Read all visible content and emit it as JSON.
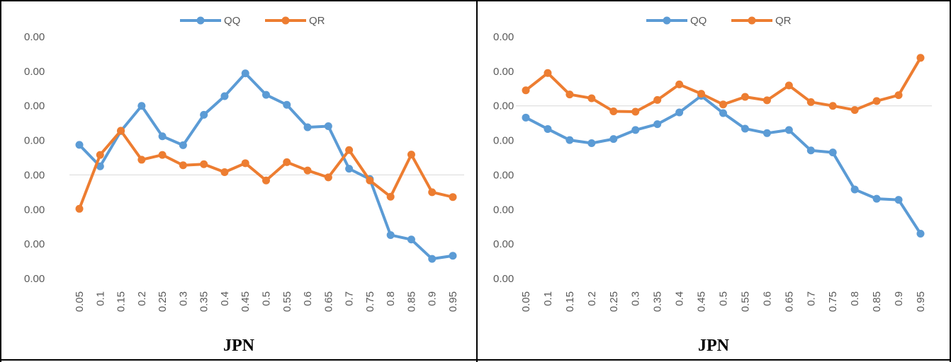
{
  "chart_data": [
    {
      "type": "line",
      "title": "",
      "xlabel": "JPN",
      "ylabel": "",
      "x": [
        "0.05",
        "0.1",
        "0.15",
        "0.2",
        "0.25",
        "0.3",
        "0.35",
        "0.4",
        "0.45",
        "0.5",
        "0.55",
        "0.6",
        "0.65",
        "0.7",
        "0.75",
        "0.8",
        "0.85",
        "0.9",
        "0.95"
      ],
      "y_tick_labels": [
        "0.00",
        "0.00",
        "0.00",
        "0.00",
        "0.00",
        "0.00",
        "0.00",
        "0.00"
      ],
      "ylim": [
        -3,
        4
      ],
      "zero_line": 0,
      "legend_position": "top",
      "series": [
        {
          "name": "QQ",
          "color": "#5B9BD5",
          "values": [
            0.87,
            0.25,
            1.27,
            2.0,
            1.12,
            0.86,
            1.74,
            2.28,
            2.94,
            2.32,
            2.03,
            1.38,
            1.41,
            0.18,
            -0.12,
            -1.74,
            -1.87,
            -2.43,
            -2.34
          ]
        },
        {
          "name": "QR",
          "color": "#ED7D31",
          "values": [
            -0.98,
            0.58,
            1.28,
            0.44,
            0.58,
            0.28,
            0.31,
            0.08,
            0.34,
            -0.16,
            0.37,
            0.13,
            -0.07,
            0.72,
            -0.16,
            -0.63,
            0.59,
            -0.5,
            -0.64
          ]
        }
      ]
    },
    {
      "type": "line",
      "title": "",
      "xlabel": "JPN",
      "ylabel": "",
      "x": [
        "0.05",
        "0.1",
        "0.15",
        "0.2",
        "0.25",
        "0.3",
        "0.35",
        "0.4",
        "0.45",
        "0.5",
        "0.55",
        "0.6",
        "0.65",
        "0.7",
        "0.75",
        "0.8",
        "0.85",
        "0.9",
        "0.95"
      ],
      "y_tick_labels": [
        "0.00",
        "0.00",
        "0.00",
        "0.00",
        "0.00",
        "0.00",
        "0.00",
        "0.00"
      ],
      "ylim": [
        -5,
        2
      ],
      "zero_line": 0,
      "legend_position": "top",
      "series": [
        {
          "name": "QQ",
          "color": "#5B9BD5",
          "values": [
            -0.34,
            -0.67,
            -0.99,
            -1.08,
            -0.96,
            -0.7,
            -0.53,
            -0.19,
            0.29,
            -0.21,
            -0.66,
            -0.79,
            -0.7,
            -1.29,
            -1.35,
            -2.42,
            -2.69,
            -2.72,
            -3.7
          ]
        },
        {
          "name": "QR",
          "color": "#ED7D31",
          "values": [
            0.45,
            0.95,
            0.33,
            0.22,
            -0.16,
            -0.17,
            0.17,
            0.62,
            0.35,
            0.04,
            0.26,
            0.16,
            0.59,
            0.11,
            0.0,
            -0.12,
            0.14,
            0.31,
            1.39
          ]
        }
      ]
    }
  ]
}
